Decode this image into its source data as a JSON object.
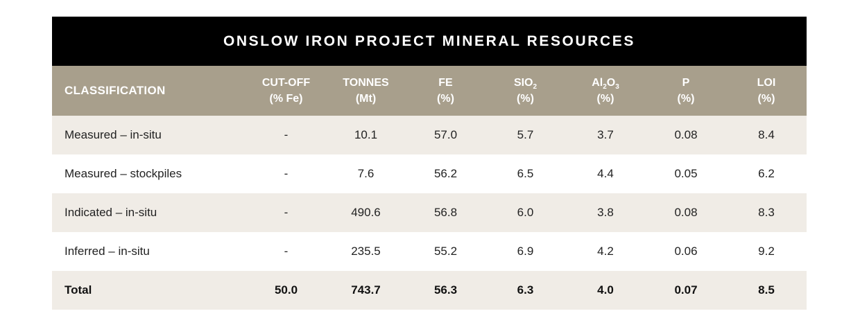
{
  "title": "ONSLOW IRON PROJECT MINERAL RESOURCES",
  "colors": {
    "title_bg": "#000000",
    "header_bg": "#a89f8c",
    "row_shade": "#f0ece6"
  },
  "headers": {
    "classification": "CLASSIFICATION",
    "cutoff": {
      "line1": "CUT-OFF",
      "line2": "(% Fe)"
    },
    "tonnes": {
      "line1": "TONNES",
      "line2": "(Mt)"
    },
    "fe": {
      "line1": "FE",
      "line2": "(%)"
    },
    "sio2": {
      "line1": "SIO",
      "sub": "2",
      "line2": "(%)"
    },
    "al2o3": {
      "line1a": "Al",
      "sub1": "2",
      "line1b": "O",
      "sub2": "3",
      "line2": "(%)"
    },
    "p": {
      "line1": "P",
      "line2": "(%)"
    },
    "loi": {
      "line1": "LOI",
      "line2": "(%)"
    }
  },
  "rows": [
    {
      "classification": "Measured – in-situ",
      "cutoff": "-",
      "tonnes": "10.1",
      "fe": "57.0",
      "sio2": "5.7",
      "al2o3": "3.7",
      "p": "0.08",
      "loi": "8.4"
    },
    {
      "classification": "Measured – stockpiles",
      "cutoff": "-",
      "tonnes": "7.6",
      "fe": "56.2",
      "sio2": "6.5",
      "al2o3": "4.4",
      "p": "0.05",
      "loi": "6.2"
    },
    {
      "classification": "Indicated – in-situ",
      "cutoff": "-",
      "tonnes": "490.6",
      "fe": "56.8",
      "sio2": "6.0",
      "al2o3": "3.8",
      "p": "0.08",
      "loi": "8.3"
    },
    {
      "classification": "Inferred – in-situ",
      "cutoff": "-",
      "tonnes": "235.5",
      "fe": "55.2",
      "sio2": "6.9",
      "al2o3": "4.2",
      "p": "0.06",
      "loi": "9.2"
    }
  ],
  "total": {
    "classification": "Total",
    "cutoff": "50.0",
    "tonnes": "743.7",
    "fe": "56.3",
    "sio2": "6.3",
    "al2o3": "4.0",
    "p": "0.07",
    "loi": "8.5"
  }
}
